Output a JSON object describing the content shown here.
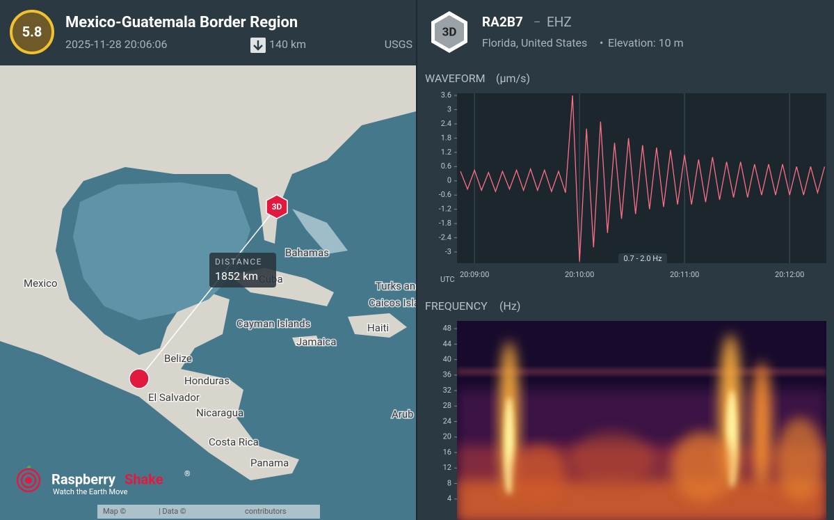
{
  "event": {
    "magnitude": 5.8,
    "region": "Mexico-Guatemala Border Region",
    "datetime": "2025-11-28 20:06:06",
    "depth": "140 km",
    "source": "USGS"
  },
  "station": {
    "badge": "3D",
    "code": "RA2B7",
    "separator": "–",
    "channel": "EHZ",
    "location": "Florida, United States",
    "bullet": "•",
    "elevation": "Elevation: 10 m"
  },
  "map": {
    "labels": [
      "Mexico",
      "Belize",
      "Honduras",
      "El Salvador",
      "Nicaragua",
      "Costa Rica",
      "Panama",
      "Cuba",
      "Bahamas",
      "Turks and",
      "Caicos Island",
      "Cayman Islands",
      "Haiti",
      "Jamaica",
      "Arub"
    ],
    "station_marker": "3D",
    "distance_label": "DISTANCE",
    "distance_value": "1852 km",
    "logo_left": "Raspberry",
    "logo_right": "Shake",
    "logo_mark": "®",
    "tagline": "Watch the Earth Move",
    "attribution": [
      "Map ©",
      "| Data ©",
      "contributors"
    ]
  },
  "waveform": {
    "title": "WAVEFORM",
    "unit": "(µm/s)",
    "axis_label": "UTC",
    "filter": "0.7 - 2.0 Hz",
    "color": "#ff6f86",
    "ylim": [
      -3.47,
      3.69
    ],
    "yticks": [
      3.6,
      3,
      2.4,
      1.8,
      1.2,
      0.6,
      0,
      -0.6,
      -1.2,
      -1.8,
      -2.4,
      -3
    ],
    "xlim": [
      "20:08:50",
      "20:12:21"
    ],
    "xticks": [
      "20:09:00",
      "20:10:00",
      "20:11:00",
      "20:12:00"
    ],
    "x": [
      "20:08:52",
      "20:08:56",
      "20:09:00",
      "20:09:04",
      "20:09:08",
      "20:09:12",
      "20:09:16",
      "20:09:20",
      "20:09:24",
      "20:09:28",
      "20:09:32",
      "20:09:36",
      "20:09:40",
      "20:09:44",
      "20:09:48",
      "20:09:52",
      "20:09:56",
      "20:10:00",
      "20:10:04",
      "20:10:08",
      "20:10:12",
      "20:10:16",
      "20:10:20",
      "20:10:24",
      "20:10:28",
      "20:10:32",
      "20:10:36",
      "20:10:40",
      "20:10:44",
      "20:10:48",
      "20:10:52",
      "20:10:56",
      "20:11:00",
      "20:11:04",
      "20:11:08",
      "20:11:12",
      "20:11:16",
      "20:11:20",
      "20:11:24",
      "20:11:28",
      "20:11:32",
      "20:11:36",
      "20:11:40",
      "20:11:44",
      "20:11:48",
      "20:11:52",
      "20:11:56",
      "20:12:00",
      "20:12:04",
      "20:12:08",
      "20:12:12",
      "20:12:16",
      "20:12:20"
    ],
    "values": [
      0.4,
      -0.35,
      0.45,
      -0.4,
      0.35,
      -0.45,
      0.4,
      -0.35,
      0.45,
      -0.4,
      0.5,
      -0.4,
      0.45,
      -0.45,
      0.4,
      -0.5,
      3.6,
      -3.4,
      2.2,
      -2.8,
      2.5,
      -2.2,
      1.6,
      -1.6,
      1.8,
      -1.4,
      1.5,
      -1.2,
      1.4,
      -1.1,
      1.3,
      -1.0,
      1.1,
      -1.0,
      0.9,
      -0.9,
      1.0,
      -0.8,
      0.8,
      -0.7,
      0.8,
      -0.7,
      0.7,
      -0.6,
      0.7,
      -0.6,
      0.7,
      -0.6,
      0.6,
      -0.6,
      0.6,
      -0.5,
      0.6
    ]
  },
  "frequency": {
    "title": "FREQUENCY",
    "unit": "(Hz)",
    "ylim": [
      0,
      50
    ],
    "yticks": [
      48,
      44,
      40,
      36,
      32,
      28,
      24,
      20,
      16,
      12,
      8,
      4
    ]
  }
}
